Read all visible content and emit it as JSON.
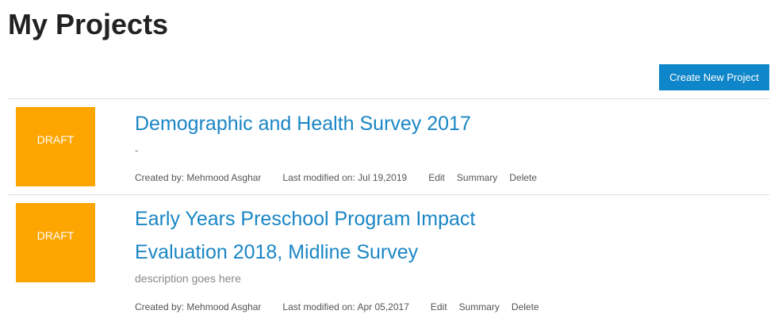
{
  "page": {
    "title": "My Projects",
    "create_button_label": "Create New Project"
  },
  "projects": [
    {
      "status": "DRAFT",
      "title": "Demographic and Health Survey 2017",
      "description": "-",
      "created_by": "Created by: Mehmood Asghar",
      "last_modified": "Last modified on: Jul 19,2019",
      "actions": {
        "edit": "Edit",
        "summary": "Summary",
        "delete": "Delete"
      }
    },
    {
      "status": "DRAFT",
      "title": "Early Years Preschool Program Impact Evaluation 2018, Midline Survey",
      "description": "description goes here",
      "created_by": "Created by: Mehmood Asghar",
      "last_modified": "Last modified on: Apr 05,2017",
      "actions": {
        "edit": "Edit",
        "summary": "Summary",
        "delete": "Delete"
      }
    }
  ],
  "colors": {
    "accent": "#0f86c9",
    "title_link": "#1a86c5",
    "draft_badge": "#fda500"
  }
}
